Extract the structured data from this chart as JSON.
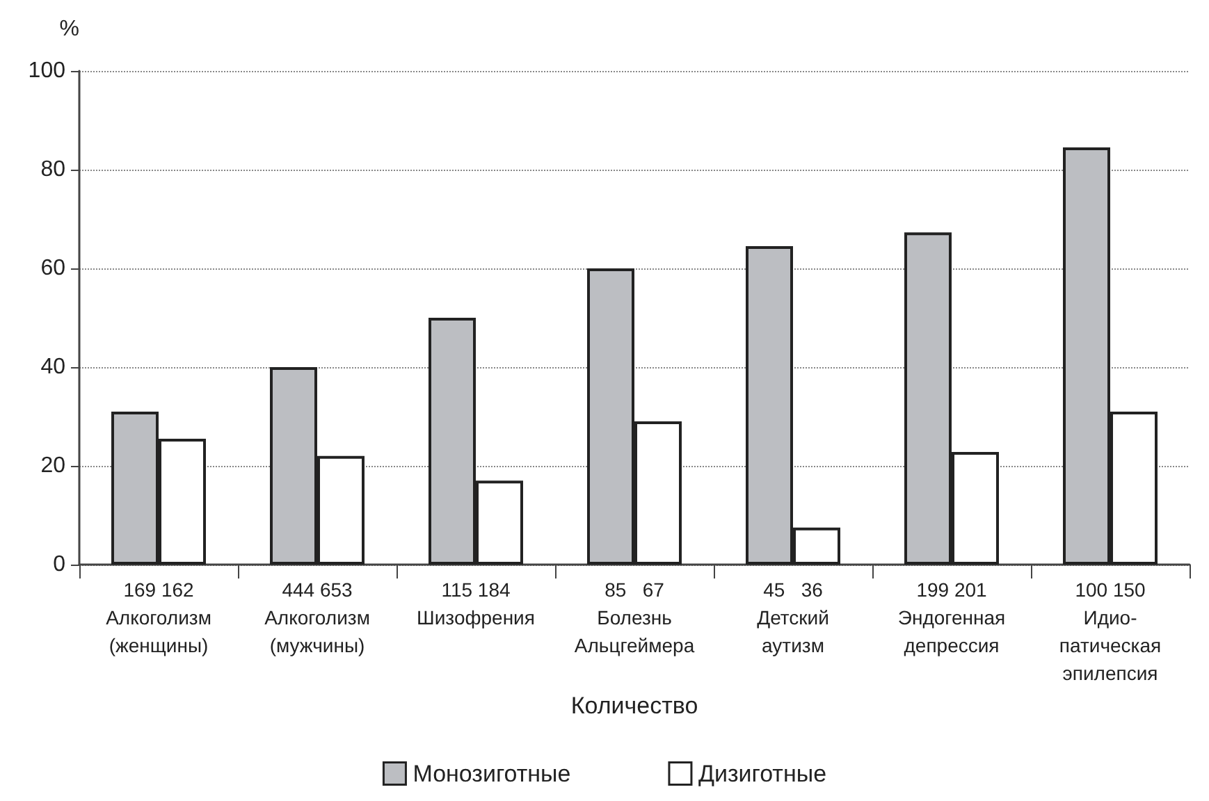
{
  "chart_data": {
    "type": "bar",
    "ylabel": "%",
    "xlabel": "Количество",
    "categories": [
      "169 162\nАлкоголизм\n(женщины)",
      "444 653\nАлкоголизм\n(мужчины)",
      "115 184\nШизофрения",
      "85   67\nБолезнь\nАльцгеймера",
      "45   36\nДетский\nаутизм",
      "199 201\nЭндогенная\nдепрессия",
      "100 150\nИдио-\nпатическая\nэпилепсия"
    ],
    "series": [
      {
        "name": "Монозиготные",
        "color": "#bcbec2",
        "values": [
          31,
          40,
          50,
          60,
          64.5,
          67.3,
          84.5
        ]
      },
      {
        "name": "Дизиготные",
        "color": "#ffffff",
        "values": [
          25.5,
          22,
          17,
          29,
          7.5,
          22.8,
          31
        ]
      }
    ],
    "ylim": [
      0,
      100
    ],
    "yticks": [
      0,
      20,
      40,
      60,
      80,
      100
    ],
    "grid": "y",
    "legend": "bottom"
  }
}
